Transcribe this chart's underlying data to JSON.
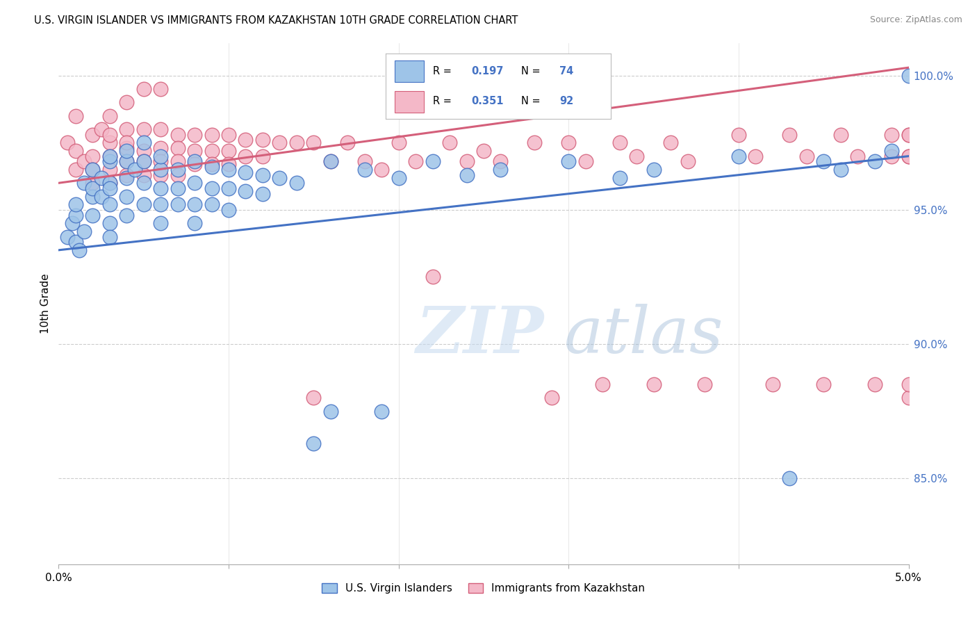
{
  "title": "U.S. VIRGIN ISLANDER VS IMMIGRANTS FROM KAZAKHSTAN 10TH GRADE CORRELATION CHART",
  "source": "Source: ZipAtlas.com",
  "ylabel": "10th Grade",
  "yaxis_values": [
    0.85,
    0.9,
    0.95,
    1.0
  ],
  "xlim": [
    0.0,
    0.05
  ],
  "ylim": [
    0.818,
    1.012
  ],
  "r_blue": 0.197,
  "n_blue": 74,
  "r_pink": 0.351,
  "n_pink": 92,
  "legend_label_blue": "U.S. Virgin Islanders",
  "legend_label_pink": "Immigrants from Kazakhstan",
  "color_blue": "#9ec4e8",
  "color_pink": "#f4b8c8",
  "line_color_blue": "#4472c4",
  "line_color_pink": "#d45f7a",
  "text_color_blue": "#4472c4",
  "blue_line_y0": 0.935,
  "blue_line_y1": 0.97,
  "pink_line_y0": 0.96,
  "pink_line_y1": 1.003,
  "blue_x": [
    0.0005,
    0.0008,
    0.001,
    0.001,
    0.001,
    0.0012,
    0.0015,
    0.0015,
    0.002,
    0.002,
    0.002,
    0.002,
    0.0025,
    0.0025,
    0.003,
    0.003,
    0.003,
    0.003,
    0.003,
    0.003,
    0.003,
    0.004,
    0.004,
    0.004,
    0.004,
    0.004,
    0.0045,
    0.005,
    0.005,
    0.005,
    0.005,
    0.006,
    0.006,
    0.006,
    0.006,
    0.006,
    0.007,
    0.007,
    0.007,
    0.008,
    0.008,
    0.008,
    0.008,
    0.009,
    0.009,
    0.009,
    0.01,
    0.01,
    0.01,
    0.011,
    0.011,
    0.012,
    0.012,
    0.013,
    0.014,
    0.015,
    0.016,
    0.016,
    0.018,
    0.019,
    0.02,
    0.022,
    0.024,
    0.026,
    0.03,
    0.033,
    0.035,
    0.04,
    0.043,
    0.045,
    0.046,
    0.048,
    0.049,
    0.05
  ],
  "blue_y": [
    0.94,
    0.945,
    0.948,
    0.938,
    0.952,
    0.935,
    0.96,
    0.942,
    0.955,
    0.948,
    0.965,
    0.958,
    0.962,
    0.955,
    0.968,
    0.96,
    0.952,
    0.945,
    0.94,
    0.97,
    0.958,
    0.968,
    0.962,
    0.955,
    0.972,
    0.948,
    0.965,
    0.968,
    0.96,
    0.952,
    0.975,
    0.965,
    0.958,
    0.952,
    0.97,
    0.945,
    0.965,
    0.958,
    0.952,
    0.968,
    0.96,
    0.952,
    0.945,
    0.966,
    0.958,
    0.952,
    0.965,
    0.958,
    0.95,
    0.964,
    0.957,
    0.963,
    0.956,
    0.962,
    0.96,
    0.863,
    0.968,
    0.875,
    0.965,
    0.875,
    0.962,
    0.968,
    0.963,
    0.965,
    0.968,
    0.962,
    0.965,
    0.97,
    0.85,
    0.968,
    0.965,
    0.968,
    0.972,
    1.0
  ],
  "pink_x": [
    0.0005,
    0.001,
    0.001,
    0.001,
    0.0015,
    0.002,
    0.002,
    0.002,
    0.002,
    0.0025,
    0.003,
    0.003,
    0.003,
    0.003,
    0.003,
    0.003,
    0.004,
    0.004,
    0.004,
    0.004,
    0.004,
    0.004,
    0.005,
    0.005,
    0.005,
    0.005,
    0.005,
    0.006,
    0.006,
    0.006,
    0.006,
    0.006,
    0.007,
    0.007,
    0.007,
    0.007,
    0.008,
    0.008,
    0.008,
    0.009,
    0.009,
    0.009,
    0.01,
    0.01,
    0.01,
    0.011,
    0.011,
    0.012,
    0.012,
    0.013,
    0.014,
    0.015,
    0.015,
    0.016,
    0.017,
    0.018,
    0.019,
    0.02,
    0.021,
    0.022,
    0.023,
    0.024,
    0.025,
    0.026,
    0.028,
    0.029,
    0.03,
    0.031,
    0.032,
    0.033,
    0.034,
    0.035,
    0.036,
    0.037,
    0.038,
    0.04,
    0.041,
    0.042,
    0.043,
    0.044,
    0.045,
    0.046,
    0.047,
    0.048,
    0.049,
    0.049,
    0.05,
    0.05,
    0.05,
    0.05,
    0.05,
    0.05
  ],
  "pink_y": [
    0.975,
    0.972,
    0.965,
    0.985,
    0.968,
    0.978,
    0.97,
    0.965,
    0.96,
    0.98,
    0.975,
    0.97,
    0.965,
    0.96,
    0.985,
    0.978,
    0.98,
    0.973,
    0.968,
    0.963,
    0.975,
    0.99,
    0.98,
    0.972,
    0.968,
    0.963,
    0.995,
    0.98,
    0.973,
    0.968,
    0.963,
    0.995,
    0.978,
    0.973,
    0.968,
    0.963,
    0.978,
    0.972,
    0.967,
    0.978,
    0.972,
    0.967,
    0.978,
    0.972,
    0.967,
    0.976,
    0.97,
    0.976,
    0.97,
    0.975,
    0.975,
    0.88,
    0.975,
    0.968,
    0.975,
    0.968,
    0.965,
    0.975,
    0.968,
    0.925,
    0.975,
    0.968,
    0.972,
    0.968,
    0.975,
    0.88,
    0.975,
    0.968,
    0.885,
    0.975,
    0.97,
    0.885,
    0.975,
    0.968,
    0.885,
    0.978,
    0.97,
    0.885,
    0.978,
    0.97,
    0.885,
    0.978,
    0.97,
    0.885,
    0.978,
    0.97,
    0.88,
    0.978,
    0.97,
    0.885,
    0.978,
    0.97
  ]
}
